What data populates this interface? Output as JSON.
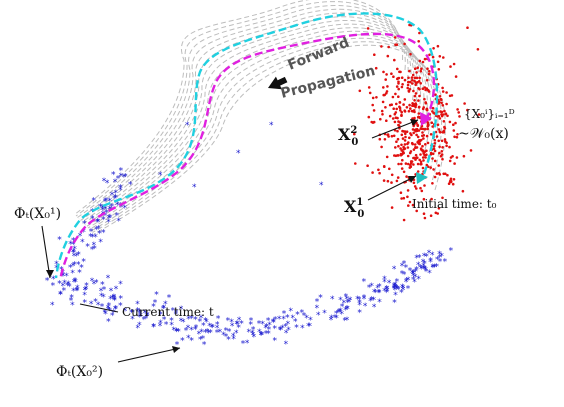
{
  "diagram": {
    "forward_label_line1": "Forward",
    "forward_label_line2": "Propagation",
    "initial_time_label": "Initial time: t₀",
    "current_time_label": "Current time: t",
    "x0_1_label": "X",
    "x0_1_sup": "1",
    "x0_1_sub": "0",
    "x0_2_label": "X",
    "x0_2_sup": "2",
    "x0_2_sub": "0",
    "ensemble_label": "{X₀ⁱ}ᵢ₌₁ᴰ",
    "distribution_label": "~𝒲₀(x)",
    "phi1_label": "Φₜ(X₀¹)",
    "phi2_label": "Φₜ(X₀²)",
    "colors": {
      "initial_points": "#e01010",
      "current_points": "#2020d0",
      "traj_magenta": "#e020e0",
      "traj_cyan": "#20d0e0",
      "traj_gray": "#b8b8b8",
      "marker_magenta": "#e020e0",
      "marker_cyan": "#20c0c0"
    }
  }
}
